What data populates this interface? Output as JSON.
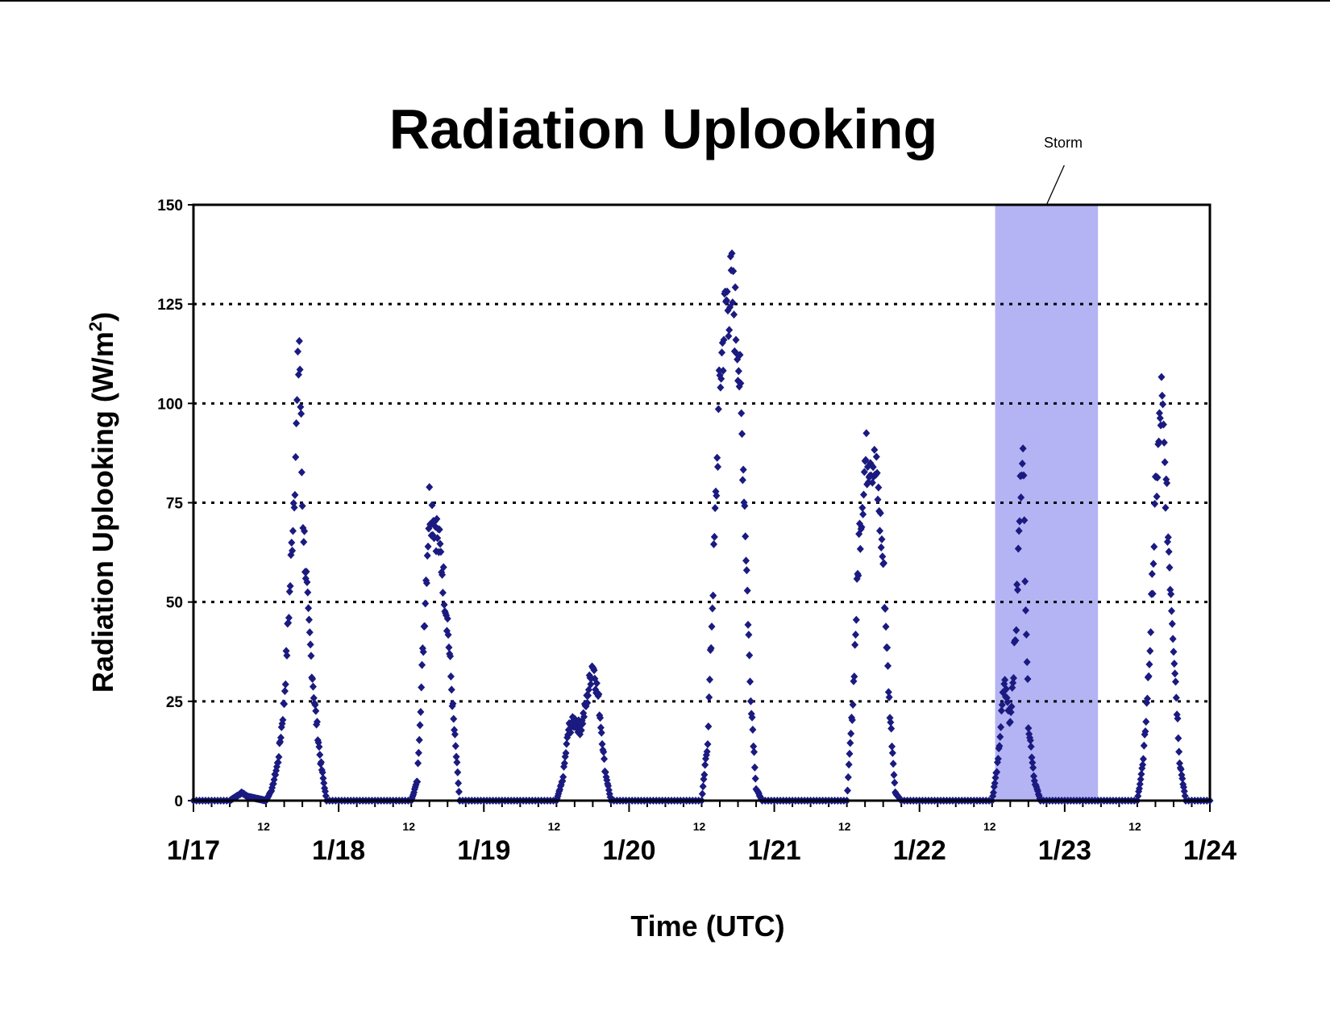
{
  "chart_data": {
    "type": "scatter",
    "title": "Radiation Uplooking",
    "xlabel": "Time (UTC)",
    "ylabel_main": "Radiation Uplooking (W/m",
    "ylabel_sup": "2",
    "ylabel_close": ")",
    "x_unit": "days",
    "xlim": [
      "1/17 00:00",
      "1/24 00:00"
    ],
    "ylim": [
      0,
      150
    ],
    "y_ticks": [
      "0",
      "25",
      "50",
      "75",
      "100",
      "125",
      "150"
    ],
    "y_tick_values": [
      0,
      25,
      50,
      75,
      100,
      125,
      150
    ],
    "x_day_labels": [
      "1/17",
      "1/18",
      "1/19",
      "1/20",
      "1/21",
      "1/22",
      "1/23",
      "1/24"
    ],
    "x_midday_label": "12",
    "grid": "horizontal dotted",
    "marker": "diamond",
    "marker_color": "#1a1a80",
    "annotation": {
      "label": "Storm",
      "x_start": "1/22 12:30",
      "x_end": "1/23 05:30",
      "fill": "#b4b4f4"
    },
    "series": [
      {
        "values": [
          [
            "1/17 00:00",
            0
          ],
          [
            "1/17 06:00",
            0
          ],
          [
            "1/17 07:00",
            1
          ],
          [
            "1/17 08:00",
            2
          ],
          [
            "1/17 09:00",
            1
          ],
          [
            "1/17 12:00",
            0
          ],
          [
            "1/17 13:00",
            3
          ],
          [
            "1/17 14:00",
            10
          ],
          [
            "1/17 15:00",
            25
          ],
          [
            "1/17 16:00",
            55
          ],
          [
            "1/17 17:00",
            92
          ],
          [
            "1/17 17:30",
            117
          ],
          [
            "1/17 18:00",
            75
          ],
          [
            "1/17 19:00",
            45
          ],
          [
            "1/17 20:00",
            25
          ],
          [
            "1/17 21:00",
            10
          ],
          [
            "1/17 22:00",
            0
          ],
          [
            "1/18 12:00",
            0
          ],
          [
            "1/18 13:00",
            5
          ],
          [
            "1/18 14:00",
            40
          ],
          [
            "1/18 15:00",
            75
          ],
          [
            "1/18 16:00",
            70
          ],
          [
            "1/18 17:00",
            60
          ],
          [
            "1/18 18:00",
            45
          ],
          [
            "1/18 19:00",
            20
          ],
          [
            "1/18 20:00",
            0
          ],
          [
            "1/19 12:00",
            0
          ],
          [
            "1/19 13:00",
            5
          ],
          [
            "1/19 14:00",
            18
          ],
          [
            "1/19 15:00",
            20
          ],
          [
            "1/19 16:00",
            18
          ],
          [
            "1/19 17:00",
            25
          ],
          [
            "1/19 18:00",
            35
          ],
          [
            "1/19 19:00",
            25
          ],
          [
            "1/19 20:00",
            8
          ],
          [
            "1/19 21:00",
            0
          ],
          [
            "1/20 12:00",
            0
          ],
          [
            "1/20 13:00",
            15
          ],
          [
            "1/20 14:00",
            60
          ],
          [
            "1/20 15:00",
            105
          ],
          [
            "1/20 16:00",
            125
          ],
          [
            "1/20 17:00",
            128
          ],
          [
            "1/20 18:00",
            115
          ],
          [
            "1/20 19:00",
            80
          ],
          [
            "1/20 20:00",
            30
          ],
          [
            "1/20 21:00",
            3
          ],
          [
            "1/20 22:00",
            0
          ],
          [
            "1/21 12:00",
            0
          ],
          [
            "1/21 13:00",
            25
          ],
          [
            "1/21 14:00",
            65
          ],
          [
            "1/21 15:00",
            85
          ],
          [
            "1/21 16:00",
            88
          ],
          [
            "1/21 17:00",
            80
          ],
          [
            "1/21 18:00",
            60
          ],
          [
            "1/21 19:00",
            25
          ],
          [
            "1/21 20:00",
            2
          ],
          [
            "1/21 21:00",
            0
          ],
          [
            "1/22 12:00",
            0
          ],
          [
            "1/22 13:00",
            10
          ],
          [
            "1/22 14:00",
            30
          ],
          [
            "1/22 15:00",
            20
          ],
          [
            "1/22 16:00",
            45
          ],
          [
            "1/22 17:00",
            93
          ],
          [
            "1/22 18:00",
            20
          ],
          [
            "1/22 19:00",
            5
          ],
          [
            "1/22 20:00",
            0
          ],
          [
            "1/23 12:00",
            0
          ],
          [
            "1/23 13:00",
            10
          ],
          [
            "1/23 14:00",
            35
          ],
          [
            "1/23 15:00",
            75
          ],
          [
            "1/23 16:00",
            101
          ],
          [
            "1/23 17:00",
            70
          ],
          [
            "1/23 18:00",
            40
          ],
          [
            "1/23 19:00",
            10
          ],
          [
            "1/23 20:00",
            0
          ],
          [
            "1/24 00:00",
            0
          ]
        ]
      }
    ]
  }
}
